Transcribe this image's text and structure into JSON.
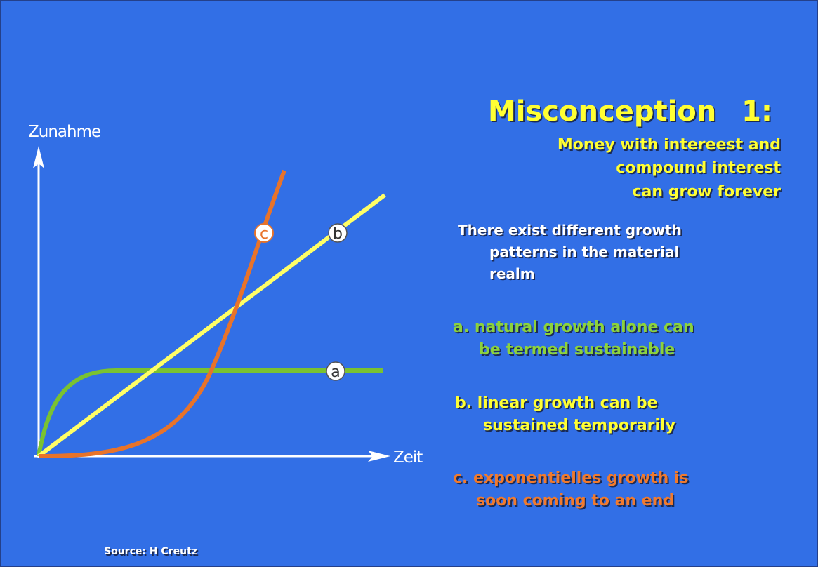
{
  "slide": {
    "title": "Misconception 1:",
    "subtitle": [
      "Money with intereest and",
      "compound interest",
      "can grow forever"
    ],
    "intro": [
      "There exist different growth",
      "patterns in the material",
      "realm"
    ],
    "points": [
      [
        "a. natural growth alone can",
        "be termed sustainable"
      ],
      [
        "b. linear growth can be",
        "sustained temporarily"
      ],
      [
        "c. exponentielles growth is",
        "soon coming to an end"
      ]
    ],
    "source": "Source: H Creutz"
  },
  "diagram": {
    "y_axis_label": "Zunahme",
    "x_axis_label": "Zeit",
    "curve_labels": [
      "a",
      "b",
      "c"
    ]
  }
}
